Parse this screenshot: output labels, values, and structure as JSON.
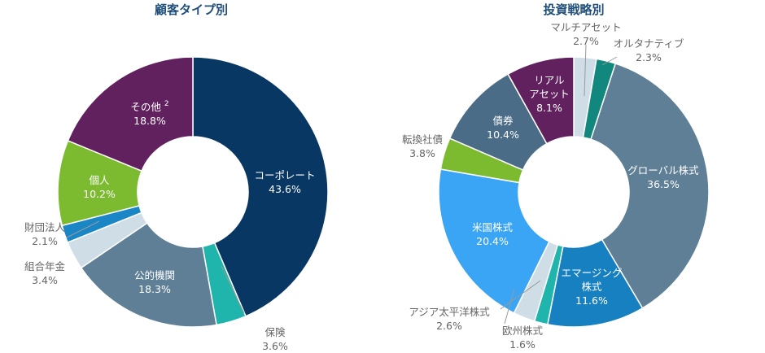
{
  "chart_data": [
    {
      "type": "pie",
      "title": "顧客タイプ別",
      "slices": [
        {
          "label": "コーポレート",
          "value": 43.6,
          "value_text": "43.6%",
          "color": "#083763",
          "label_pos": "inside"
        },
        {
          "label": "保険",
          "value": 3.6,
          "value_text": "3.6%",
          "color": "#1fb5ac",
          "label_pos": "outside"
        },
        {
          "label": "公的機関",
          "value": 18.3,
          "value_text": "18.3%",
          "color": "#5f7f96",
          "label_pos": "inside"
        },
        {
          "label": "組合年金",
          "value": 3.4,
          "value_text": "3.4%",
          "color": "#cfdde6",
          "label_pos": "outside"
        },
        {
          "label": "財団法人",
          "value": 2.1,
          "value_text": "2.1%",
          "color": "#1a86c6",
          "label_pos": "outside"
        },
        {
          "label": "個人",
          "value": 10.2,
          "value_text": "10.2%",
          "color": "#7cbb2f",
          "label_pos": "inside"
        },
        {
          "label": "その他",
          "superscript": "2",
          "value": 18.8,
          "value_text": "18.8%",
          "color": "#61215e",
          "label_pos": "inside"
        }
      ]
    },
    {
      "type": "pie",
      "title": "投資戦略別",
      "slices": [
        {
          "label": "マルチアセット",
          "value": 2.7,
          "value_text": "2.7%",
          "color": "#cfdde6",
          "label_pos": "outside"
        },
        {
          "label": "オルタナティブ",
          "value": 2.3,
          "value_text": "2.3%",
          "color": "#12877d",
          "label_pos": "outside"
        },
        {
          "label": "グローバル株式",
          "value": 36.5,
          "value_text": "36.5%",
          "color": "#5f7f96",
          "label_pos": "inside"
        },
        {
          "label": "エマージング\n株式",
          "value": 11.6,
          "value_text": "11.6%",
          "color": "#1680c1",
          "label_pos": "inside"
        },
        {
          "label": "欧州株式",
          "value": 1.6,
          "value_text": "1.6%",
          "color": "#1fb5ac",
          "label_pos": "outside"
        },
        {
          "label": "アジア太平洋株式",
          "value": 2.6,
          "value_text": "2.6%",
          "color": "#cfdde6",
          "label_pos": "outside"
        },
        {
          "label": "米国株式",
          "value": 20.4,
          "value_text": "20.4%",
          "color": "#3ba5f5",
          "label_pos": "inside"
        },
        {
          "label": "転換社債",
          "value": 3.8,
          "value_text": "3.8%",
          "color": "#7cbb2f",
          "label_pos": "outside"
        },
        {
          "label": "債券",
          "value": 10.4,
          "value_text": "10.4%",
          "color": "#4a6c86",
          "label_pos": "inside"
        },
        {
          "label": "リアル\nアセット",
          "value": 8.1,
          "value_text": "8.1%",
          "color": "#61215e",
          "label_pos": "inside"
        }
      ]
    }
  ]
}
